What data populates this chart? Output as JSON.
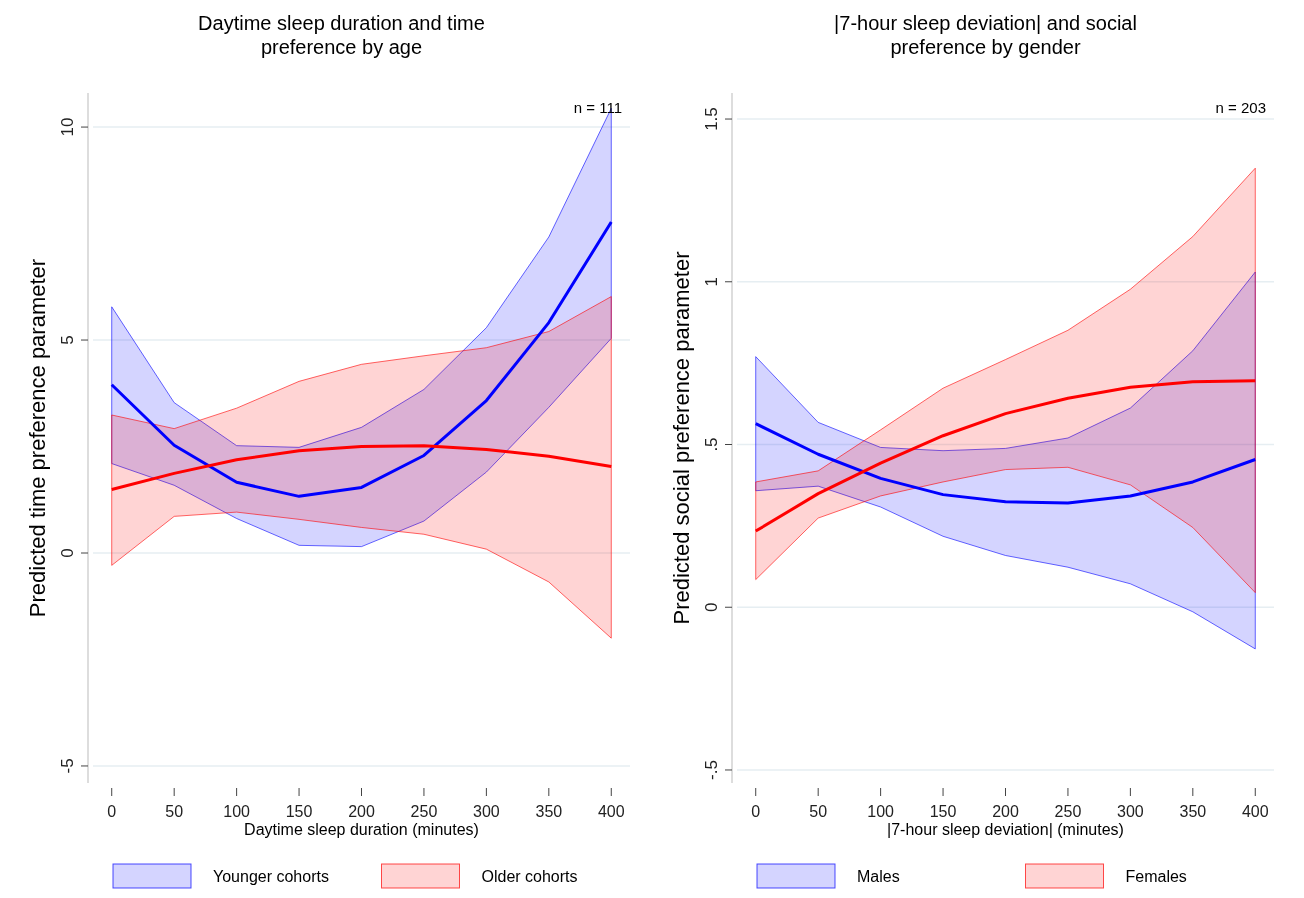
{
  "chart_data": [
    {
      "type": "line",
      "title": "Daytime sleep duration and time preference by age",
      "xlabel": "Daytime sleep duration (minutes)",
      "ylabel": "Predicted time preference parameter",
      "annotations": [
        "n = 111"
      ],
      "x": [
        0,
        50,
        100,
        150,
        200,
        250,
        300,
        350,
        400
      ],
      "xlim": [
        -15,
        415
      ],
      "xticks": [
        0,
        50,
        100,
        150,
        200,
        250,
        300,
        350,
        400
      ],
      "ylim": [
        -5.4,
        10.8
      ],
      "yticks": [
        -5,
        0,
        5,
        10
      ],
      "grid": "y",
      "legend": "bottom",
      "series": [
        {
          "name": "Younger cohorts",
          "color": "#0000ff",
          "values": [
            3.95,
            2.53,
            1.66,
            1.33,
            1.54,
            2.29,
            3.58,
            5.41,
            7.77
          ],
          "lower": [
            2.1,
            1.59,
            0.81,
            0.18,
            0.15,
            0.75,
            1.9,
            3.42,
            5.04
          ],
          "upper": [
            5.78,
            3.53,
            2.52,
            2.48,
            2.95,
            3.84,
            5.29,
            7.42,
            10.44
          ]
        },
        {
          "name": "Older cohorts",
          "color": "#ff0000",
          "values": [
            1.49,
            1.87,
            2.19,
            2.4,
            2.5,
            2.52,
            2.43,
            2.27,
            2.03
          ],
          "lower": [
            -0.29,
            0.86,
            0.96,
            0.79,
            0.6,
            0.44,
            0.09,
            -0.68,
            -2.0
          ],
          "upper": [
            3.24,
            2.92,
            3.4,
            4.03,
            4.43,
            4.63,
            4.82,
            5.2,
            6.02
          ]
        }
      ]
    },
    {
      "type": "line",
      "title": "|7-hour sleep deviation| and social preference by gender",
      "xlabel": "|7-hour sleep deviation| (minutes)",
      "ylabel": "Predicted social preference parameter",
      "annotations": [
        "n = 203"
      ],
      "x": [
        0,
        50,
        100,
        150,
        200,
        250,
        300,
        350,
        400
      ],
      "xlim": [
        -15,
        415
      ],
      "xticks": [
        0,
        50,
        100,
        150,
        200,
        250,
        300,
        350,
        400
      ],
      "ylim": [
        -0.54,
        1.58
      ],
      "yticks": [
        {
          "value": -0.5,
          "label": "-.5"
        },
        0,
        {
          "value": 0.5,
          "label": ".5"
        },
        1,
        1.5
      ],
      "grid": "y",
      "legend": "bottom",
      "series": [
        {
          "name": "Males",
          "color": "#0000ff",
          "values": [
            0.564,
            0.47,
            0.396,
            0.346,
            0.324,
            0.32,
            0.342,
            0.385,
            0.454
          ],
          "lower": [
            0.358,
            0.372,
            0.308,
            0.218,
            0.159,
            0.123,
            0.072,
            -0.014,
            -0.128
          ],
          "upper": [
            0.77,
            0.568,
            0.491,
            0.481,
            0.488,
            0.52,
            0.612,
            0.788,
            1.03
          ]
        },
        {
          "name": "Females",
          "color": "#ff0000",
          "values": [
            0.234,
            0.349,
            0.443,
            0.527,
            0.595,
            0.642,
            0.676,
            0.693,
            0.696
          ],
          "lower": [
            0.085,
            0.274,
            0.342,
            0.385,
            0.423,
            0.43,
            0.376,
            0.245,
            0.045
          ],
          "upper": [
            0.385,
            0.419,
            0.545,
            0.673,
            0.761,
            0.851,
            0.977,
            1.139,
            1.349
          ]
        }
      ]
    }
  ]
}
